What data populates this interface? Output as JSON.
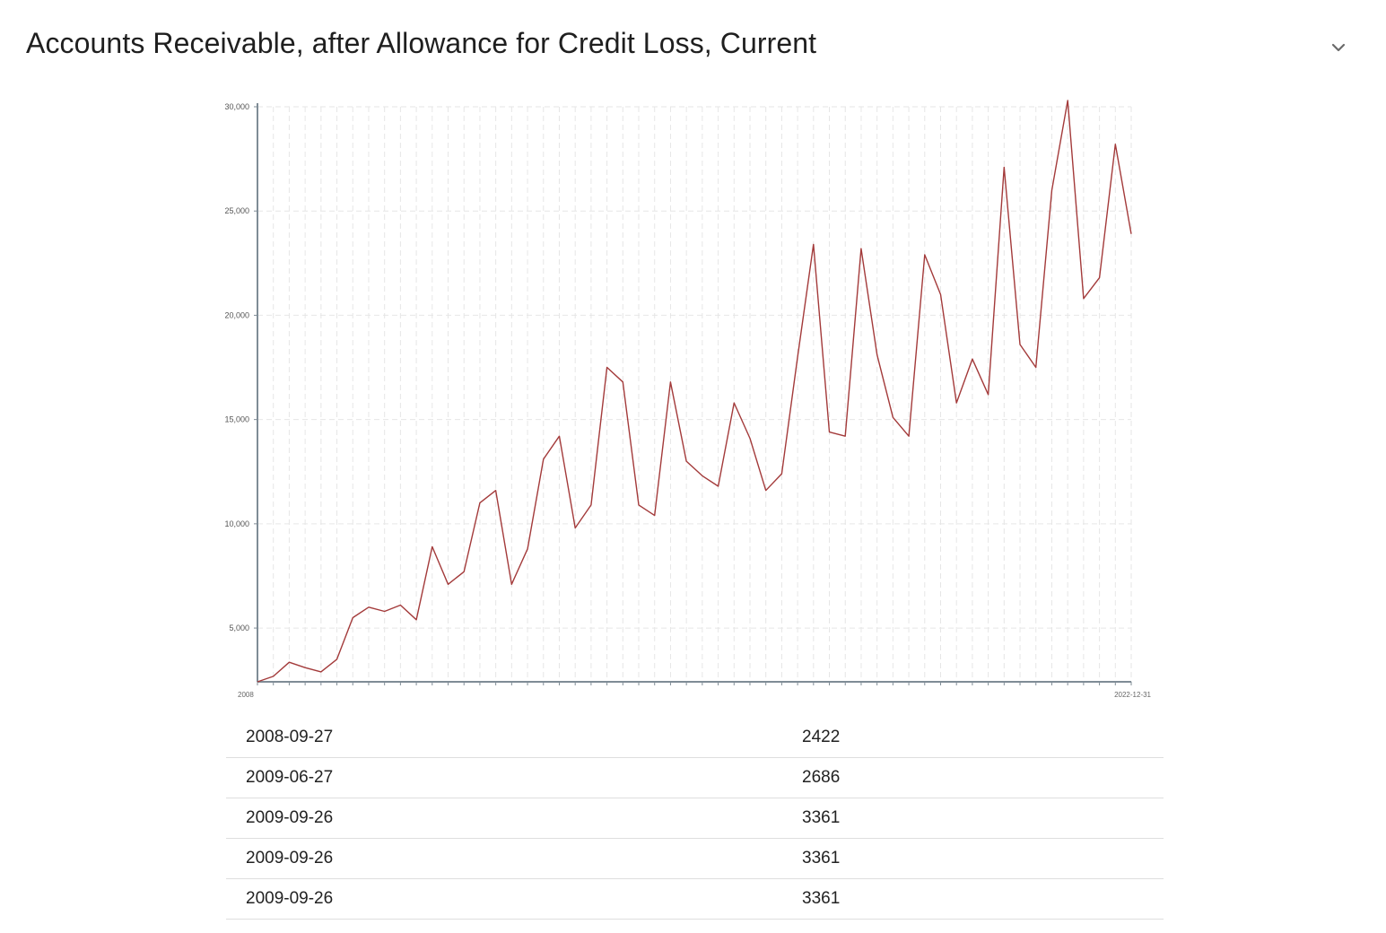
{
  "page": {
    "title": "Accounts Receivable, after Allowance for Credit Loss, Current",
    "toggle_icon": "chevron-down-icon"
  },
  "colors": {
    "line": "#a33a3a",
    "axis": "#7f8c96",
    "grid": "#e6e6e6",
    "text": "#222222"
  },
  "chart_data": {
    "type": "line",
    "title": "",
    "xlabel": "",
    "ylabel": "",
    "x_first_tick": "2008",
    "x_last_tick": "2022-12-31",
    "ylim": [
      2422,
      30000
    ],
    "yticks": [
      5000,
      10000,
      15000,
      20000,
      25000,
      30000
    ],
    "ytick_labels": [
      "5,000",
      "10,000",
      "15,000",
      "20,000",
      "25,000",
      "30,000"
    ],
    "grid": true,
    "series": [
      {
        "values": [
          2422,
          2686,
          3361,
          3100,
          2900,
          3500,
          5500,
          6000,
          5800,
          6100,
          5400,
          8900,
          7100,
          7700,
          11000,
          11600,
          7100,
          8800,
          13100,
          14200,
          9800,
          10900,
          17500,
          16800,
          10900,
          10400,
          16800,
          13000,
          12300,
          11800,
          15800,
          14100,
          11600,
          12400,
          18000,
          23400,
          14400,
          14200,
          23200,
          18100,
          15100,
          14200,
          22900,
          21000,
          15800,
          17900,
          16200,
          27100,
          18600,
          17500,
          26000,
          30300,
          20800,
          21800,
          28200,
          23900
        ]
      }
    ]
  },
  "table": {
    "rows": [
      {
        "date": "2008-09-27",
        "value": "2422"
      },
      {
        "date": "2009-06-27",
        "value": "2686"
      },
      {
        "date": "2009-09-26",
        "value": "3361"
      },
      {
        "date": "2009-09-26",
        "value": "3361"
      },
      {
        "date": "2009-09-26",
        "value": "3361"
      }
    ]
  }
}
